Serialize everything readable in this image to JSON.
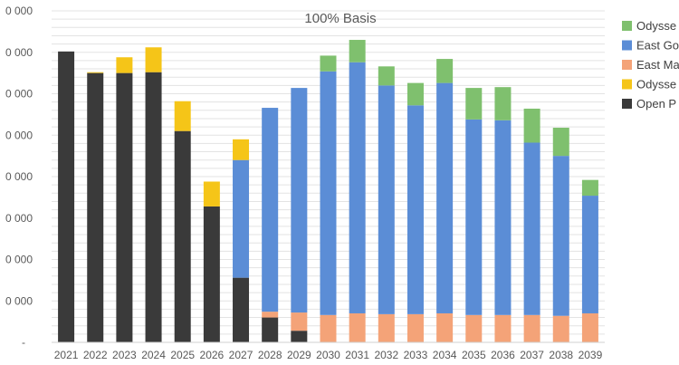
{
  "chart_data": {
    "type": "bar",
    "stacked": true,
    "title": "100% Basis",
    "xlabel": "",
    "ylabel": "",
    "ylim": [
      0,
      400000
    ],
    "ytick_labels": [
      "-",
      "0 000",
      "0 000",
      "0 000",
      "0 000",
      "0 000",
      "0 000",
      "0 000",
      "0 000"
    ],
    "grid": true,
    "legend_position": "right",
    "categories": [
      "2021",
      "2022",
      "2023",
      "2024",
      "2025",
      "2026",
      "2027",
      "2028",
      "2029",
      "2030",
      "2031",
      "2032",
      "2033",
      "2034",
      "2035",
      "2036",
      "2037",
      "2038",
      "2039"
    ],
    "series": [
      {
        "name": "Open P",
        "color": "#3a3a3a",
        "values": [
          351000,
          325000,
          325000,
          326000,
          255000,
          164000,
          78000,
          30000,
          14000,
          0,
          0,
          0,
          0,
          0,
          0,
          0,
          0,
          0,
          0
        ]
      },
      {
        "name": "East Ma",
        "color": "#f4a378",
        "values": [
          0,
          0,
          0,
          0,
          0,
          0,
          0,
          7000,
          22000,
          33000,
          35000,
          34000,
          34000,
          35000,
          33000,
          33000,
          33000,
          32000,
          35000
        ]
      },
      {
        "name": "East Go",
        "color": "#5b8dd6",
        "values": [
          0,
          0,
          0,
          0,
          0,
          0,
          142000,
          246000,
          271000,
          294000,
          303000,
          276000,
          252000,
          278000,
          236000,
          235000,
          208000,
          193000,
          142000
        ]
      },
      {
        "name": "Odysse",
        "color": "#f5c518",
        "values": [
          0,
          1000,
          19000,
          30000,
          36000,
          30000,
          25000,
          0,
          0,
          0,
          0,
          0,
          0,
          0,
          0,
          0,
          0,
          0,
          0
        ]
      },
      {
        "name": "Odysse",
        "color": "#7fc06e",
        "values": [
          0,
          0,
          0,
          0,
          0,
          0,
          0,
          0,
          0,
          19000,
          27000,
          23000,
          27000,
          29000,
          38000,
          40000,
          41000,
          34000,
          19000
        ]
      }
    ],
    "legend_order": [
      4,
      2,
      1,
      3,
      0
    ]
  }
}
